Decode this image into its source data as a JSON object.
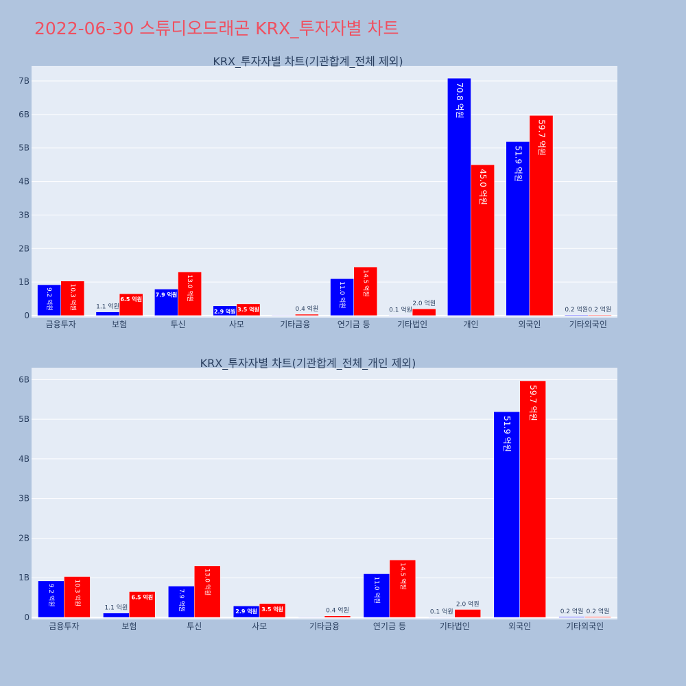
{
  "title": "2022-06-30 스튜디오드래곤 KRX_투자자별 차트",
  "colors": {
    "page_bg": "#b0c4de",
    "plot_bg": "#e5ecf6",
    "title": "#ef5060",
    "grid": "#ffffff",
    "text": "#2a3f5f",
    "series_1": "#0000ff",
    "series_2": "#ff0000"
  },
  "chart_data": [
    {
      "type": "bar",
      "title": "KRX_투자자별 차트(기관합계_전체 제외)",
      "categories": [
        "금융투자",
        "보험",
        "투신",
        "사모",
        "기타금융",
        "연기금 등",
        "기타법인",
        "개인",
        "외국인",
        "기타외국인"
      ],
      "series": [
        {
          "color": "#0000ff",
          "values": [
            920000000,
            110000000,
            790000000,
            290000000,
            0,
            1100000000,
            10000000,
            7080000000,
            5190000000,
            20000000
          ],
          "labels": [
            "9.2 억원",
            "1.1 억원",
            "7.9 억원",
            "2.9 억원",
            "",
            "11.0 억원",
            "0.1 억원",
            "70.8 억원",
            "51.9 억원",
            "0.2 억원"
          ]
        },
        {
          "color": "#ff0000",
          "values": [
            1030000000,
            650000000,
            1300000000,
            350000000,
            40000000,
            1450000000,
            200000000,
            4500000000,
            5970000000,
            20000000
          ],
          "labels": [
            "10.3 억원",
            "6.5 억원",
            "13.0 억원",
            "3.5 억원",
            "0.4 억원",
            "14.5 억원",
            "2.0 억원",
            "45.0 억원",
            "59.7 억원",
            "0.2 억원"
          ]
        }
      ],
      "yticks": [
        0,
        1000000000,
        2000000000,
        3000000000,
        4000000000,
        5000000000,
        6000000000,
        7000000000
      ],
      "ytick_labels": [
        "0",
        "1B",
        "2B",
        "3B",
        "4B",
        "5B",
        "6B",
        "7B"
      ],
      "ylim": [
        0,
        7450000000
      ],
      "grid": true
    },
    {
      "type": "bar",
      "title": "KRX_투자자별 차트(기관합계_전체_개인 제외)",
      "categories": [
        "금융투자",
        "보험",
        "투신",
        "사모",
        "기타금융",
        "연기금 등",
        "기타법인",
        "외국인",
        "기타외국인"
      ],
      "series": [
        {
          "color": "#0000ff",
          "values": [
            920000000,
            110000000,
            790000000,
            290000000,
            0,
            1100000000,
            10000000,
            5190000000,
            20000000
          ],
          "labels": [
            "9.2 억원",
            "1.1 억원",
            "7.9 억원",
            "2.9 억원",
            "",
            "11.0 억원",
            "0.1 억원",
            "51.9 억원",
            "0.2 억원"
          ]
        },
        {
          "color": "#ff0000",
          "values": [
            1030000000,
            650000000,
            1300000000,
            350000000,
            40000000,
            1450000000,
            200000000,
            5970000000,
            20000000
          ],
          "labels": [
            "10.3 억원",
            "6.5 억원",
            "13.0 억원",
            "3.5 억원",
            "0.4 억원",
            "14.5 억원",
            "2.0 억원",
            "59.7 억원",
            "0.2 억원"
          ]
        }
      ],
      "yticks": [
        0,
        1000000000,
        2000000000,
        3000000000,
        4000000000,
        5000000000,
        6000000000
      ],
      "ytick_labels": [
        "0",
        "1B",
        "2B",
        "3B",
        "4B",
        "5B",
        "6B"
      ],
      "ylim": [
        0,
        6300000000
      ],
      "grid": true
    }
  ]
}
